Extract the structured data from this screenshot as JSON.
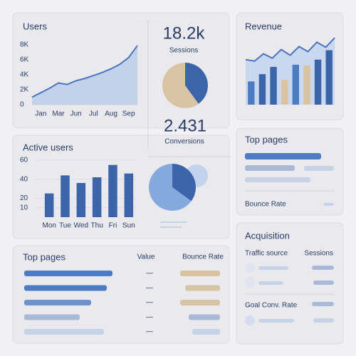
{
  "users": {
    "type": "line",
    "title": "Users",
    "categories": [
      null,
      "Jan",
      null,
      "Mar",
      null,
      "Jun",
      null,
      "Jul",
      null,
      "Aug",
      null,
      "Sep",
      null
    ],
    "values": [
      1000,
      1600,
      2200,
      2900,
      2700,
      3200,
      3500,
      3900,
      4300,
      4800,
      5400,
      6300,
      7900
    ],
    "color": "#4a74c0",
    "ylim": [
      0,
      8000
    ],
    "yticks": [
      0,
      {
        "value": 2000,
        "label": "2K"
      },
      {
        "value": 4000,
        "label": "4K"
      },
      {
        "value": 6000,
        "label": "6K"
      },
      {
        "value": 8000,
        "label": "8K"
      }
    ]
  },
  "sessions": {
    "value": "18.2k",
    "label": "Sessions"
  },
  "sessions_pie": {
    "type": "pie",
    "values": [
      40,
      60
    ],
    "colors": [
      "#3c64a8",
      "#d8c4a3"
    ]
  },
  "conversions": {
    "value": "2.431",
    "label": "Conversions"
  },
  "revenue": {
    "type": "bar",
    "title": "Revenue",
    "ylim": [
      0,
      100
    ],
    "values": [
      32,
      42,
      52,
      34,
      55,
      54,
      62,
      75
    ],
    "colors": [
      "#4e7cc4",
      "#3c64a8",
      "#3c64a8",
      "#d8c4a3",
      "#4e7cc4",
      "#d8c4a3",
      "#3c64a8",
      "#3c64a8"
    ],
    "line": [
      62,
      60,
      70,
      64,
      76,
      68,
      80,
      73,
      86,
      79,
      92
    ],
    "line_color": "#4a74c0"
  },
  "top_pages_side": {
    "title": "Top pages",
    "footer": "Bounce Rate"
  },
  "active_users": {
    "type": "bar",
    "title": "Active users",
    "categories": [
      "Mon",
      "Tue",
      "Wed",
      "Thu",
      "Fri",
      "Sun"
    ],
    "values": [
      25,
      44,
      36,
      42,
      55,
      46
    ],
    "color": "#3c64a8",
    "ylim": [
      0,
      60
    ],
    "yticks": [
      10,
      20,
      40,
      60
    ]
  },
  "active_pie": {
    "type": "pie",
    "values": [
      35,
      65
    ],
    "colors": [
      "#3c64a8",
      "#86a9dd"
    ]
  },
  "top_pages_table": {
    "title": "Top pages",
    "columns": [
      "Value",
      "Bounce Rate"
    ],
    "rows": [
      "—",
      "—",
      "—",
      "—",
      "—"
    ]
  },
  "acquisition": {
    "title": "Acquisition",
    "columns": [
      "Traffic source",
      "Sessions"
    ],
    "footer": "Goal Conv. Rate"
  }
}
